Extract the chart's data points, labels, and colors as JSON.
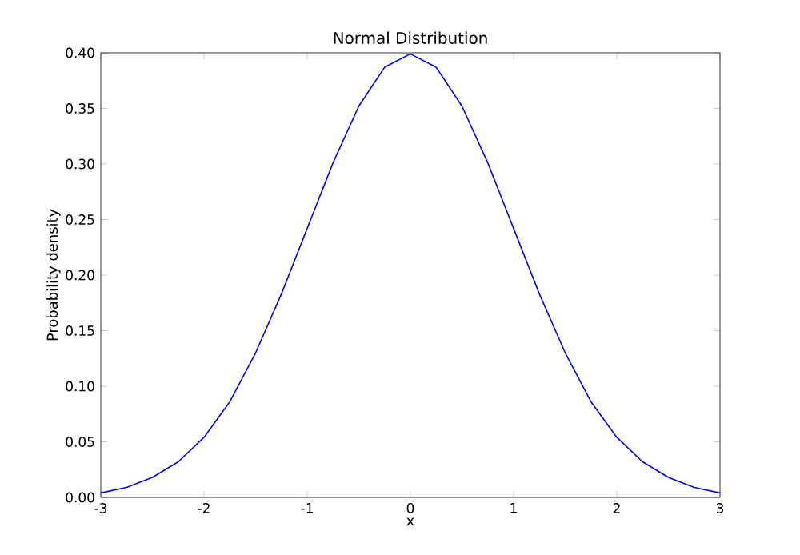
{
  "chart_data": {
    "type": "line",
    "title": "Normal Distribution",
    "xlabel": "x",
    "ylabel": "Probability density",
    "x": [
      -3,
      -2.75,
      -2.5,
      -2.25,
      -2,
      -1.75,
      -1.5,
      -1.25,
      -1,
      -0.75,
      -0.5,
      -0.25,
      0,
      0.25,
      0.5,
      0.75,
      1,
      1.25,
      1.5,
      1.75,
      2,
      2.25,
      2.5,
      2.75,
      3
    ],
    "series": [
      {
        "color": "#0000ff",
        "values": [
          0.004,
          0.009,
          0.018,
          0.032,
          0.054,
          0.086,
          0.13,
          0.183,
          0.242,
          0.301,
          0.352,
          0.387,
          0.399,
          0.387,
          0.352,
          0.301,
          0.242,
          0.183,
          0.13,
          0.086,
          0.054,
          0.032,
          0.018,
          0.009,
          0.004
        ]
      }
    ],
    "xlim": [
      -3,
      3
    ],
    "ylim": [
      0,
      0.4
    ],
    "xticks": [
      -3,
      -2,
      -1,
      0,
      1,
      2,
      3
    ],
    "yticks": [
      {
        "value": 0,
        "label": "0.00"
      },
      {
        "value": 0.05,
        "label": "0.05"
      },
      {
        "value": 0.1,
        "label": "0.10"
      },
      {
        "value": 0.15,
        "label": "0.15"
      },
      {
        "value": 0.2,
        "label": "0.20"
      },
      {
        "value": 0.25,
        "label": "0.25"
      },
      {
        "value": 0.3,
        "label": "0.30"
      },
      {
        "value": 0.35,
        "label": "0.35"
      },
      {
        "value": 0.4,
        "label": "0.40"
      }
    ],
    "grid": false,
    "marker": "none",
    "line_style": "solid"
  }
}
